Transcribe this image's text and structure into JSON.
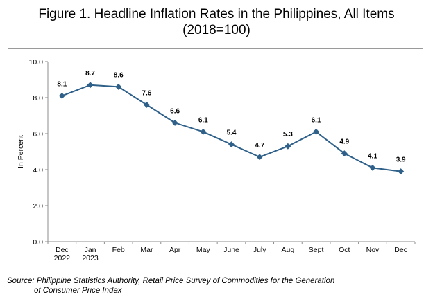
{
  "title": {
    "line1": "Figure 1. Headline Inflation Rates in the Philippines, All Items",
    "line2": "(2018=100)"
  },
  "source": {
    "line1": "Source: Philippine Statistics Authority, Retail Price Survey of Commodities for the Generation",
    "line2": "of Consumer Price Index"
  },
  "chart_data": {
    "type": "line",
    "title": "Figure 1. Headline Inflation Rates in the Philippines, All Items (2018=100)",
    "xlabel": "",
    "ylabel": "In Percent",
    "ylim": [
      0,
      10
    ],
    "yticks": [
      "0.0",
      "2.0",
      "4.0",
      "6.0",
      "8.0",
      "10.0"
    ],
    "grid": false,
    "legend": "none",
    "categories": [
      [
        "Dec",
        "2022"
      ],
      [
        "Jan",
        "2023"
      ],
      [
        "Feb"
      ],
      [
        "Mar"
      ],
      [
        "Apr"
      ],
      [
        "May"
      ],
      [
        "June"
      ],
      [
        "July"
      ],
      [
        "Aug"
      ],
      [
        "Sept"
      ],
      [
        "Oct"
      ],
      [
        "Nov"
      ],
      [
        "Dec"
      ]
    ],
    "series": [
      {
        "values": [
          8.1,
          8.7,
          8.6,
          7.6,
          6.6,
          6.1,
          5.4,
          4.7,
          5.3,
          6.1,
          4.9,
          4.1,
          3.9
        ],
        "labels": [
          "8.1",
          "8.7",
          "8.6",
          "7.6",
          "6.6",
          "6.1",
          "5.4",
          "4.7",
          "5.3",
          "6.1",
          "4.9",
          "4.1",
          "3.9"
        ],
        "color": "#2e6089",
        "marker": "diamond"
      }
    ]
  }
}
